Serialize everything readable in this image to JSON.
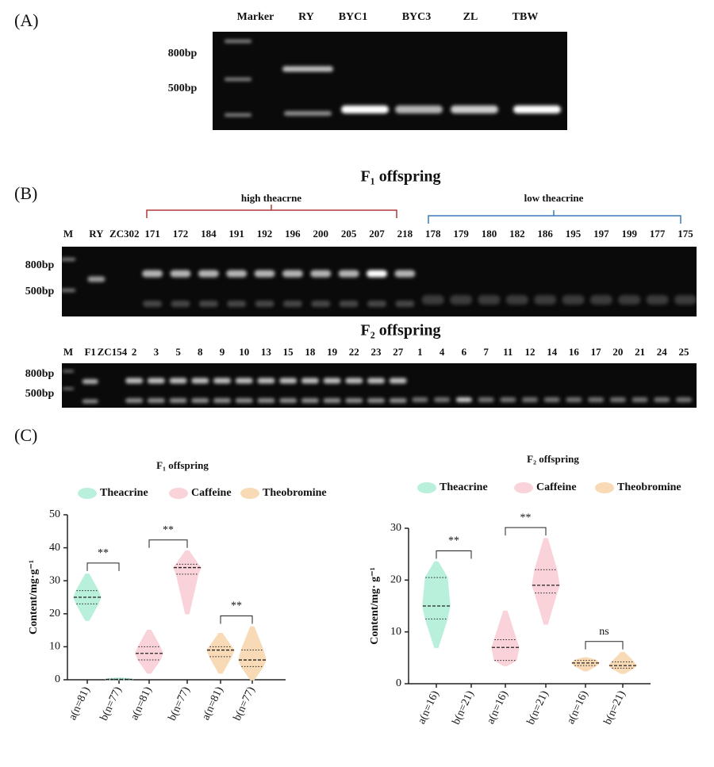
{
  "panel_labels": [
    "(A)",
    "(B)",
    "(C)"
  ],
  "gel_a": {
    "lanes": [
      "Marker",
      "RY",
      "BYC1",
      "BYC3",
      "ZL",
      "TBW"
    ],
    "size_labels": [
      "800bp",
      "500bp"
    ]
  },
  "gel_b1": {
    "title": "F₁ offspring",
    "groups": [
      "high theacrne",
      "low theacrine"
    ],
    "lanes": [
      "M",
      "RY",
      "ZC302",
      "171",
      "172",
      "184",
      "191",
      "192",
      "196",
      "200",
      "205",
      "207",
      "218",
      "178",
      "179",
      "180",
      "182",
      "186",
      "195",
      "197",
      "199",
      "177",
      "175"
    ],
    "size_labels": [
      "800bp",
      "500bp"
    ]
  },
  "gel_b2": {
    "title": "F₂ offspring",
    "lanes": [
      "M",
      "F1",
      "ZC154",
      "2",
      "3",
      "5",
      "8",
      "9",
      "10",
      "13",
      "15",
      "18",
      "19",
      "22",
      "23",
      "27",
      "1",
      "4",
      "6",
      "7",
      "11",
      "12",
      "14",
      "16",
      "17",
      "20",
      "21",
      "24",
      "25"
    ],
    "size_labels": [
      "800bp",
      "500bp"
    ]
  },
  "chart_data": [
    {
      "type": "violin",
      "title": "F₁ offspring",
      "y_label": "Content/mg·g⁻¹",
      "categories": [
        "a(n=81)",
        "b(n=77)",
        "a(n=81)",
        "b(n=77)",
        "a(n=81)",
        "b(n=77)"
      ],
      "ylim": [
        0,
        50
      ],
      "yticks": [
        0,
        10,
        20,
        30,
        40,
        50
      ],
      "significance": [
        "**",
        "**",
        "**"
      ],
      "series": [
        {
          "name": "Theacrine",
          "color": "#b9f0dc",
          "min": [
            18,
            0
          ],
          "q1": [
            23,
            0
          ],
          "median": [
            25,
            0.1
          ],
          "q3": [
            27,
            0.2
          ],
          "max": [
            32,
            0.5
          ]
        },
        {
          "name": "Caffeine",
          "color": "#f9d2da",
          "min": [
            2,
            20
          ],
          "q1": [
            6,
            32
          ],
          "median": [
            8,
            34
          ],
          "q3": [
            10,
            35
          ],
          "max": [
            15,
            39
          ]
        },
        {
          "name": "Theobromine",
          "color": "#f8dab6",
          "min": [
            2,
            0
          ],
          "q1": [
            7,
            4
          ],
          "median": [
            9,
            6
          ],
          "q3": [
            10,
            9
          ],
          "max": [
            14,
            16
          ]
        }
      ]
    },
    {
      "type": "violin",
      "title": "F₂ offspring",
      "y_label": "Content/mg· g⁻¹",
      "categories": [
        "a(n=16)",
        "b(n=21)",
        "a(n=16)",
        "b(n=21)",
        "a(n=16)",
        "b(n=21)"
      ],
      "ylim": [
        0,
        30
      ],
      "yticks": [
        0,
        10,
        20,
        30
      ],
      "significance": [
        "**",
        "**",
        "ns"
      ],
      "series": [
        {
          "name": "Theacrine",
          "color": "#b9f0dc",
          "min": [
            7,
            null
          ],
          "q1": [
            12.5,
            null
          ],
          "median": [
            15,
            null
          ],
          "q3": [
            20.5,
            null
          ],
          "max": [
            23.5,
            null
          ]
        },
        {
          "name": "Caffeine",
          "color": "#f9d2da",
          "min": [
            3.5,
            11.5
          ],
          "q1": [
            4.5,
            17.5
          ],
          "median": [
            7,
            19
          ],
          "q3": [
            8.5,
            22
          ],
          "max": [
            14,
            28
          ]
        },
        {
          "name": "Theobromine",
          "color": "#f8dab6",
          "min": [
            2.5,
            2
          ],
          "q1": [
            3.5,
            3
          ],
          "median": [
            4,
            3.5
          ],
          "q3": [
            4.5,
            4.2
          ],
          "max": [
            5,
            6
          ]
        }
      ]
    }
  ]
}
